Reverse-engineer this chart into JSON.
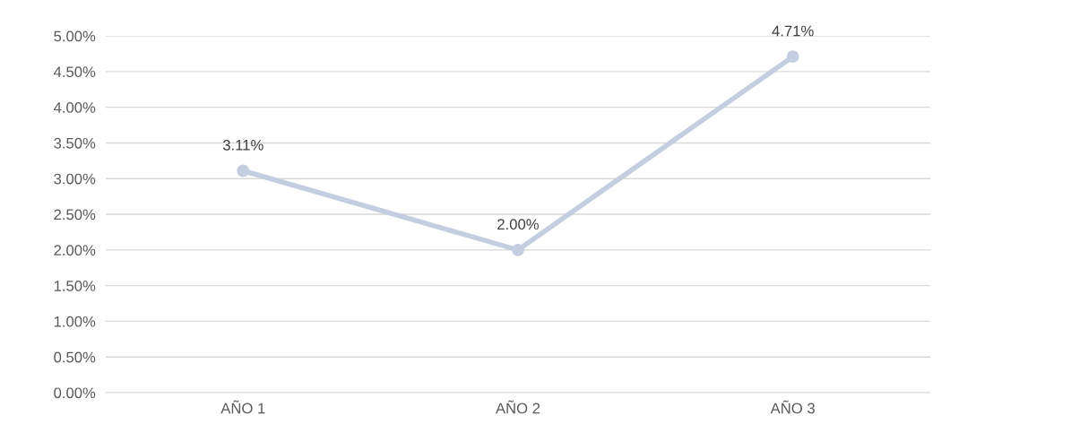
{
  "chart_data": {
    "type": "line",
    "categories": [
      "AÑO 1",
      "AÑO 2",
      "AÑO 3"
    ],
    "series": [
      {
        "color": "#c5cee0",
        "values": [
          3.11,
          2.0,
          4.71
        ],
        "value_labels": [
          "3.11%",
          "2.00%",
          "4.71%"
        ]
      }
    ],
    "ylim": [
      0,
      5
    ],
    "yticks": [
      {
        "value": 0,
        "label": "0.00%"
      },
      {
        "value": 0.5,
        "label": "0.50%"
      },
      {
        "value": 1,
        "label": "1.00%"
      },
      {
        "value": 1.5,
        "label": "1.50%"
      },
      {
        "value": 2,
        "label": "2.00%"
      },
      {
        "value": 2.5,
        "label": "2.50%"
      },
      {
        "value": 3,
        "label": "3.00%"
      },
      {
        "value": 3.5,
        "label": "3.50%"
      },
      {
        "value": 4,
        "label": "4.00%"
      },
      {
        "value": 4.5,
        "label": "4.50%"
      },
      {
        "value": 5,
        "label": "5.00%"
      }
    ],
    "grid": "y",
    "marker": "circle",
    "line_style": "solid"
  }
}
